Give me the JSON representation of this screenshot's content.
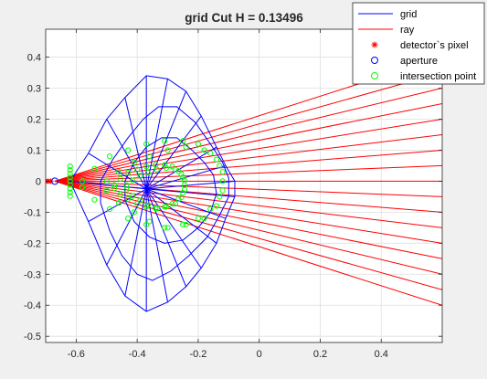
{
  "chart_data": {
    "type": "line",
    "title": "grid Cut H = 0.13496",
    "xlabel": "",
    "ylabel": "",
    "xlim": [
      -0.7,
      0.6
    ],
    "ylim": [
      -0.52,
      0.49
    ],
    "x_ticks": [
      -0.6,
      -0.4,
      -0.2,
      0,
      0.2,
      0.4
    ],
    "x_tick_labels": [
      "-0.6",
      "-0.4",
      "-0.2",
      "0",
      "0.2",
      "0.4"
    ],
    "y_ticks": [
      -0.5,
      -0.4,
      -0.3,
      -0.2,
      -0.1,
      0,
      0.1,
      0.2,
      0.3,
      0.4
    ],
    "y_tick_labels": [
      "-0.5",
      "-0.4",
      "-0.3",
      "-0.2",
      "-0.1",
      "0",
      "0.1",
      "0.2",
      "0.3",
      "0.4"
    ],
    "grid": true,
    "legend_position": "top-right",
    "legend": [
      {
        "label": "grid",
        "marker": "line",
        "color": "#0000ff"
      },
      {
        "label": "ray",
        "marker": "line",
        "color": "#ff0000"
      },
      {
        "label": "detector`s pixel",
        "marker": "asterisk",
        "color": "#ff0000"
      },
      {
        "label": "aperture",
        "marker": "circle",
        "color": "#0000ff"
      },
      {
        "label": "intersection point",
        "marker": "circle",
        "color": "#00ff00"
      }
    ],
    "aperture": {
      "x": -0.67,
      "y": 0
    },
    "detector_pixel": {
      "x": -0.71,
      "y": 0
    },
    "ray_end_x": 0.6,
    "ray_end_y": [
      0.4,
      0.35,
      0.3,
      0.25,
      0.2,
      0.15,
      0.1,
      0.05,
      0.0,
      -0.05,
      -0.1,
      -0.15,
      -0.2,
      -0.25,
      -0.3,
      -0.35,
      -0.4
    ],
    "grid_center": {
      "x": -0.37,
      "y": -0.025
    },
    "grid_front_x": -0.62,
    "grid_rings": [
      {
        "x": [
          -0.62,
          -0.56,
          -0.5,
          -0.44,
          -0.37,
          -0.3,
          -0.24,
          -0.19,
          -0.14,
          -0.11,
          -0.08,
          -0.08,
          -0.11,
          -0.14,
          -0.19,
          -0.24,
          -0.3,
          -0.37,
          -0.44,
          -0.5,
          -0.56
        ],
        "y": [
          0.0,
          0.09,
          0.2,
          0.27,
          0.34,
          0.33,
          0.29,
          0.21,
          0.11,
          0.05,
          0.0,
          -0.05,
          -0.12,
          -0.2,
          -0.28,
          -0.34,
          -0.39,
          -0.42,
          -0.37,
          -0.27,
          -0.13
        ]
      },
      {
        "x": [
          -0.52,
          -0.48,
          -0.43,
          -0.38,
          -0.33,
          -0.27,
          -0.21,
          -0.16,
          -0.12,
          -0.1,
          -0.1,
          -0.13,
          -0.17,
          -0.23,
          -0.29,
          -0.35,
          -0.4,
          -0.45,
          -0.49,
          -0.52
        ],
        "y": [
          0.0,
          0.07,
          0.14,
          0.2,
          0.24,
          0.24,
          0.19,
          0.12,
          0.06,
          0.01,
          -0.05,
          -0.11,
          -0.18,
          -0.24,
          -0.29,
          -0.32,
          -0.3,
          -0.24,
          -0.16,
          -0.07
        ]
      },
      {
        "x": [
          -0.44,
          -0.41,
          -0.37,
          -0.32,
          -0.27,
          -0.22,
          -0.18,
          -0.15,
          -0.14,
          -0.16,
          -0.2,
          -0.25,
          -0.31,
          -0.36,
          -0.41,
          -0.44
        ],
        "y": [
          0.0,
          0.06,
          0.11,
          0.14,
          0.14,
          0.1,
          0.06,
          0.02,
          -0.04,
          -0.1,
          -0.15,
          -0.19,
          -0.2,
          -0.18,
          -0.13,
          -0.06
        ]
      }
    ],
    "intersection_rings": [
      {
        "x": [
          -0.58,
          -0.54,
          -0.49,
          -0.43,
          -0.37,
          -0.31,
          -0.25,
          -0.2,
          -0.16,
          -0.13,
          -0.12,
          -0.13,
          -0.16,
          -0.2,
          -0.25,
          -0.31,
          -0.37,
          -0.43,
          -0.49,
          -0.54,
          -0.58
        ],
        "y": [
          0.0,
          0.04,
          0.08,
          0.1,
          0.12,
          0.13,
          0.13,
          0.12,
          0.09,
          0.05,
          0.0,
          -0.05,
          -0.09,
          -0.12,
          -0.14,
          -0.15,
          -0.14,
          -0.12,
          -0.09,
          -0.06,
          -0.02
        ]
      },
      {
        "x": [
          -0.5,
          -0.46,
          -0.41,
          -0.36,
          -0.3,
          -0.24,
          -0.18,
          -0.14,
          -0.12,
          -0.12,
          -0.14,
          -0.18,
          -0.24,
          -0.3,
          -0.36,
          -0.41,
          -0.46,
          -0.5
        ],
        "y": [
          0.0,
          0.03,
          0.06,
          0.08,
          0.1,
          0.11,
          0.1,
          0.07,
          0.03,
          -0.03,
          -0.08,
          -0.12,
          -0.14,
          -0.15,
          -0.13,
          -0.1,
          -0.07,
          -0.03
        ]
      }
    ]
  }
}
